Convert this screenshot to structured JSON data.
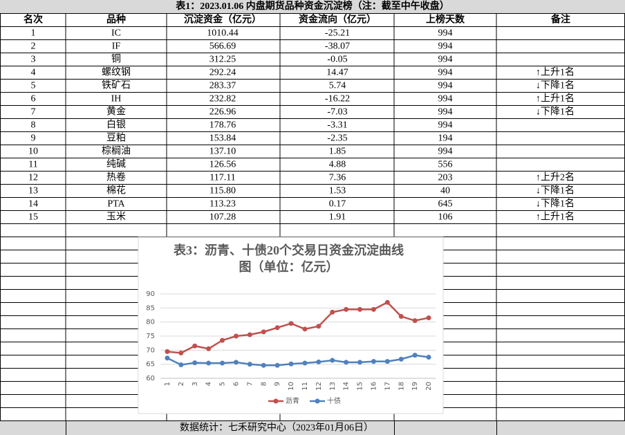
{
  "title": "表1：2023.01.06 内盘期货品种资金沉淀榜（注：截至中午收盘）",
  "table": {
    "header": [
      "名次",
      "品种",
      "沉淀资金（亿元）",
      "资金流向（亿元）",
      "上榜天数",
      "备注"
    ],
    "rows": [
      [
        "1",
        "IC",
        "1010.44",
        "-25.21",
        "994",
        ""
      ],
      [
        "2",
        "IF",
        "566.69",
        "-38.07",
        "994",
        ""
      ],
      [
        "3",
        "铜",
        "312.25",
        "-0.05",
        "994",
        ""
      ],
      [
        "4",
        "螺纹钢",
        "292.24",
        "14.47",
        "994",
        "↑上升1名"
      ],
      [
        "5",
        "铁矿石",
        "283.37",
        "5.74",
        "994",
        "↓下降1名"
      ],
      [
        "6",
        "IH",
        "232.82",
        "-16.22",
        "994",
        "↑上升1名"
      ],
      [
        "7",
        "黄金",
        "226.96",
        "-7.03",
        "994",
        "↓下降1名"
      ],
      [
        "8",
        "白银",
        "178.76",
        "-3.31",
        "994",
        ""
      ],
      [
        "9",
        "豆粕",
        "153.84",
        "-2.35",
        "194",
        ""
      ],
      [
        "10",
        "棕榈油",
        "137.10",
        "1.85",
        "994",
        ""
      ],
      [
        "11",
        "纯碱",
        "126.56",
        "4.88",
        "556",
        ""
      ],
      [
        "12",
        "热卷",
        "117.11",
        "7.36",
        "203",
        "↑上升2名"
      ],
      [
        "13",
        "棉花",
        "115.80",
        "1.53",
        "40",
        "↓下降1名"
      ],
      [
        "14",
        "PTA",
        "113.23",
        "0.17",
        "645",
        "↓下降1名"
      ],
      [
        "15",
        "玉米",
        "107.28",
        "1.91",
        "106",
        "↑上升1名"
      ]
    ]
  },
  "footer": "数据统计：七禾研究中心（2023年01月06日）",
  "chart": {
    "type": "line",
    "title": "表3：沥青、十债20个交易日资金沉淀曲线图（单位：亿元）",
    "categories": [
      "1",
      "2",
      "3",
      "4",
      "5",
      "6",
      "7",
      "8",
      "9",
      "10",
      "11",
      "12",
      "13",
      "14",
      "15",
      "16",
      "17",
      "18",
      "19",
      "20"
    ],
    "series": [
      {
        "name": "沥青",
        "color": "#c0504d",
        "values": [
          69.5,
          69,
          71.5,
          70.5,
          73.5,
          75,
          75.5,
          76.5,
          78,
          79.5,
          77.5,
          78.5,
          83.5,
          84.5,
          84.5,
          84.5,
          87,
          82,
          80.5,
          81.5
        ]
      },
      {
        "name": "十债",
        "color": "#4f81bd",
        "values": [
          67.2,
          64.8,
          65.5,
          65.4,
          65.4,
          65.7,
          65,
          64.6,
          64.6,
          65.1,
          65.4,
          65.8,
          66.4,
          65.7,
          65.7,
          66,
          66,
          66.8,
          68.2,
          67.5
        ]
      }
    ],
    "ylim": [
      60,
      90
    ],
    "yticks": [
      60,
      65,
      70,
      75,
      80,
      85,
      90
    ],
    "grid": true,
    "legend": "bottom"
  }
}
